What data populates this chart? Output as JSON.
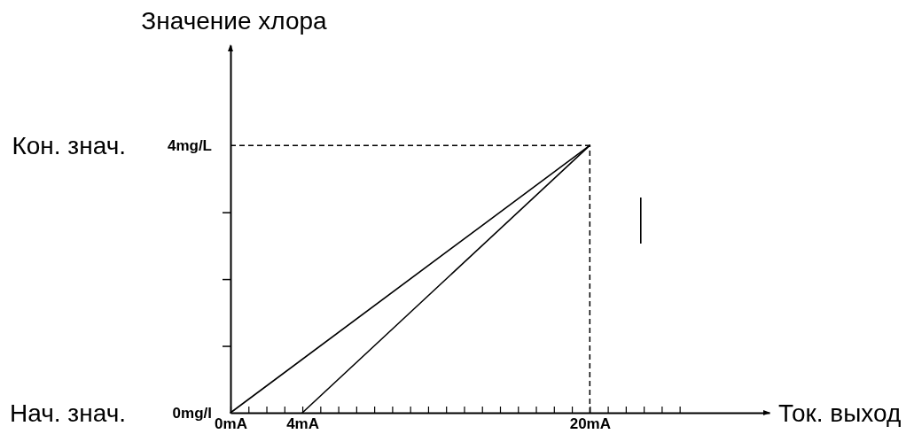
{
  "chart_data": {
    "type": "line",
    "xlabel": "Ток. выход",
    "ylabel": "Значение хлора",
    "annotations": [
      "Кон. знач.",
      "Нач. знач."
    ],
    "xlim": [
      0,
      30
    ],
    "xticks": [
      {
        "value": 0,
        "label": "0mA"
      },
      {
        "value": 1,
        "label": null
      },
      {
        "value": 2,
        "label": null
      },
      {
        "value": 3,
        "label": null
      },
      {
        "value": 4,
        "label": "4mA"
      },
      {
        "value": 5,
        "label": null
      },
      {
        "value": 6,
        "label": null
      },
      {
        "value": 7,
        "label": null
      },
      {
        "value": 8,
        "label": null
      },
      {
        "value": 9,
        "label": null
      },
      {
        "value": 10,
        "label": null
      },
      {
        "value": 11,
        "label": null
      },
      {
        "value": 12,
        "label": null
      },
      {
        "value": 13,
        "label": null
      },
      {
        "value": 14,
        "label": null
      },
      {
        "value": 15,
        "label": null
      },
      {
        "value": 16,
        "label": null
      },
      {
        "value": 17,
        "label": null
      },
      {
        "value": 18,
        "label": null
      },
      {
        "value": 19,
        "label": null
      },
      {
        "value": 20,
        "label": "20mA"
      },
      {
        "value": 21,
        "label": null
      },
      {
        "value": 22,
        "label": null
      },
      {
        "value": 23,
        "label": null
      },
      {
        "value": 24,
        "label": null
      },
      {
        "value": 25,
        "label": null
      }
    ],
    "ylim": [
      0,
      5.5
    ],
    "yticks": [
      {
        "value": 0,
        "label": "0mg/l"
      },
      {
        "value": 1,
        "label": null
      },
      {
        "value": 2,
        "label": null
      },
      {
        "value": 3,
        "label": null
      },
      {
        "value": 4,
        "label": "4mg/L"
      }
    ],
    "series": [
      {
        "x": [
          0,
          20
        ],
        "values": [
          0,
          4
        ],
        "color": "#000000"
      },
      {
        "x": [
          4,
          20
        ],
        "values": [
          0,
          4
        ],
        "color": "#000000"
      }
    ],
    "ref_lines": [
      {
        "axis": "y",
        "value": 4,
        "color": "#000000",
        "line_style": "dashed"
      },
      {
        "axis": "x",
        "value": 20,
        "color": "#000000",
        "line_style": "dashed"
      }
    ]
  }
}
